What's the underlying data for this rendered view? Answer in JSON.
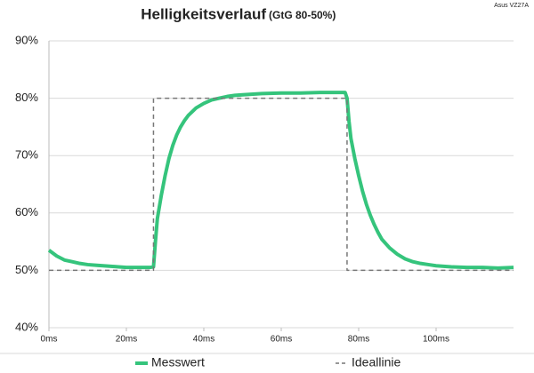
{
  "chart_data": {
    "type": "line",
    "title": "Helligkeitsverlauf",
    "subtitle": "(GtG 80-50%)",
    "corner_label": "Asus VZ27A",
    "series": [
      {
        "name": "Messwert",
        "color": "#35c47c",
        "dashed": false,
        "x": [
          0,
          2,
          4,
          6,
          8,
          10,
          12,
          14,
          16,
          18,
          20,
          22,
          24,
          26,
          27,
          27.5,
          28,
          29,
          30,
          31,
          32,
          33,
          34,
          35,
          36,
          38,
          40,
          42,
          44,
          46,
          48,
          50,
          55,
          60,
          65,
          70,
          75,
          76.5,
          77,
          77.5,
          78,
          79,
          80,
          81,
          82,
          83,
          84,
          85,
          86,
          88,
          90,
          92,
          94,
          96,
          98,
          100,
          104,
          108,
          112,
          116,
          120
        ],
        "values": [
          53.5,
          52.5,
          51.8,
          51.5,
          51.2,
          51.0,
          50.9,
          50.8,
          50.7,
          50.6,
          50.5,
          50.5,
          50.5,
          50.5,
          50.6,
          55,
          59,
          63,
          66.5,
          69.5,
          71.8,
          73.6,
          75,
          76.1,
          77,
          78.3,
          79.1,
          79.7,
          80,
          80.3,
          80.5,
          80.6,
          80.8,
          80.9,
          80.9,
          81,
          81,
          81,
          80,
          76,
          73,
          69.5,
          66.5,
          63.8,
          61.5,
          59.6,
          58,
          56.6,
          55.4,
          53.9,
          52.8,
          52,
          51.5,
          51.2,
          51,
          50.8,
          50.6,
          50.5,
          50.5,
          50.4,
          50.5
        ]
      },
      {
        "name": "Ideallinie",
        "color": "#777777",
        "dashed": true,
        "x": [
          0,
          27,
          27,
          77,
          77,
          120
        ],
        "values": [
          50,
          50,
          80,
          80,
          50,
          50
        ]
      }
    ],
    "xlim": [
      0,
      120
    ],
    "xticks": [
      {
        "value": 0,
        "label": "0ms"
      },
      {
        "value": 20,
        "label": "20ms"
      },
      {
        "value": 40,
        "label": "40ms"
      },
      {
        "value": 60,
        "label": "60ms"
      },
      {
        "value": 80,
        "label": "80ms"
      },
      {
        "value": 100,
        "label": "100ms"
      }
    ],
    "ylim": [
      40,
      90
    ],
    "yticks": [
      {
        "value": 40,
        "label": "40%"
      },
      {
        "value": 50,
        "label": "50%"
      },
      {
        "value": 60,
        "label": "60%"
      },
      {
        "value": 70,
        "label": "70%"
      },
      {
        "value": 80,
        "label": "80%"
      },
      {
        "value": 90,
        "label": "90%"
      }
    ],
    "grid": true,
    "legend": "bottom"
  }
}
